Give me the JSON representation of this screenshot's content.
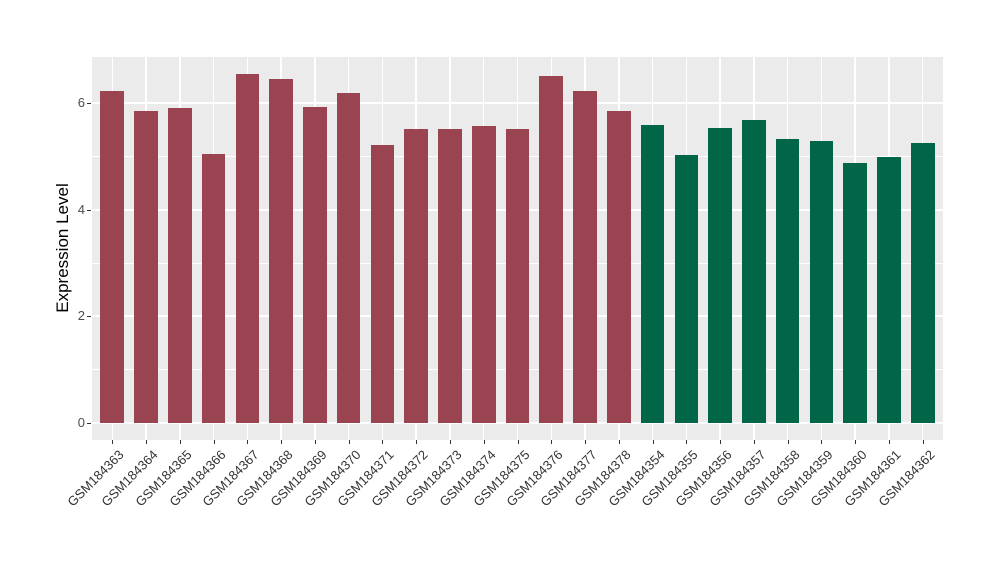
{
  "figure": {
    "background": "#FFFFFF",
    "panel_background": "#EBEBEB"
  },
  "y_axis": {
    "title": "Expression Level",
    "tick_labels": [
      "0",
      "2",
      "4",
      "6"
    ]
  },
  "chart_data": {
    "type": "bar",
    "title": "",
    "xlabel": "",
    "ylabel": "Expression Level",
    "ylim": [
      -0.33,
      6.87
    ],
    "yticks_major": [
      0,
      2,
      4,
      6
    ],
    "yticks_minor": [
      1,
      3,
      5
    ],
    "grid": true,
    "legend_position": "none",
    "panel_bg": "#EBEBEB",
    "grid_color": "#FFFFFF",
    "categories": [
      "GSM184363",
      "GSM184364",
      "GSM184365",
      "GSM184366",
      "GSM184367",
      "GSM184368",
      "GSM184369",
      "GSM184370",
      "GSM184371",
      "GSM184372",
      "GSM184373",
      "GSM184374",
      "GSM184375",
      "GSM184376",
      "GSM184377",
      "GSM184378",
      "GSM184354",
      "GSM184355",
      "GSM184356",
      "GSM184357",
      "GSM184358",
      "GSM184359",
      "GSM184360",
      "GSM184361",
      "GSM184362"
    ],
    "values": [
      6.23,
      5.86,
      5.92,
      5.04,
      6.55,
      6.46,
      5.93,
      6.2,
      5.21,
      5.52,
      5.52,
      5.57,
      5.52,
      6.51,
      6.23,
      5.85,
      5.6,
      5.03,
      5.54,
      5.69,
      5.33,
      5.29,
      4.88,
      4.99,
      5.25
    ],
    "groups": [
      "group1",
      "group1",
      "group1",
      "group1",
      "group1",
      "group1",
      "group1",
      "group1",
      "group1",
      "group1",
      "group1",
      "group1",
      "group1",
      "group1",
      "group1",
      "group1",
      "group2",
      "group2",
      "group2",
      "group2",
      "group2",
      "group2",
      "group2",
      "group2",
      "group2"
    ],
    "group_colors": {
      "group1": "#9B4451",
      "group2": "#006647"
    }
  }
}
